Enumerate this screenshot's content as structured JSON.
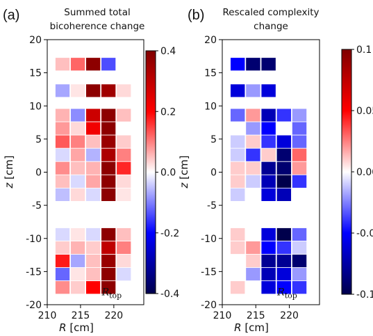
{
  "chart_data": [
    {
      "type": "heatmap",
      "panel_label": "(a)",
      "title_lines": [
        "Summed total",
        "bicoherence change"
      ],
      "xlabel": "R [cm]",
      "ylabel": "z [cm]",
      "xlim": [
        210,
        224.5
      ],
      "ylim": [
        -20,
        20
      ],
      "xticks": [
        210,
        215,
        220
      ],
      "yticks": [
        20,
        15,
        10,
        5,
        0,
        -5,
        -10,
        -15,
        -20
      ],
      "grid": false,
      "annotation": {
        "text": "R",
        "sub": "top",
        "x": 218.2,
        "y": -18.6
      },
      "colorbar": {
        "vmin": -0.4,
        "vmax": 0.4,
        "ticks": [
          0.4,
          0.2,
          0.0,
          -0.2,
          -0.4
        ],
        "tick_labels": [
          "0.4",
          "0.2",
          "0.0",
          "-0.2",
          "-0.4"
        ],
        "colormap": "seismic"
      },
      "cell_width": 2.2,
      "cell_height": 2.0,
      "rows": [
        {
          "z": 16.3,
          "cells": [
            {
              "R": 212.3,
              "v": 0.05
            },
            {
              "R": 214.6,
              "v": 0.12
            },
            {
              "R": 216.9,
              "v": 0.38
            },
            {
              "R": 219.2,
              "v": -0.14
            }
          ]
        },
        {
          "z": 12.3,
          "cells": [
            {
              "R": 212.3,
              "v": -0.07
            },
            {
              "R": 214.6,
              "v": 0.02
            },
            {
              "R": 216.9,
              "v": 0.38
            },
            {
              "R": 219.2,
              "v": 0.35
            },
            {
              "R": 221.5,
              "v": 0.03
            }
          ]
        },
        {
          "z": 8.6,
          "cells": [
            {
              "R": 212.3,
              "v": 0.06
            },
            {
              "R": 214.6,
              "v": -0.09
            },
            {
              "R": 216.9,
              "v": 0.28
            },
            {
              "R": 219.2,
              "v": 0.38
            },
            {
              "R": 221.5,
              "v": 0.05
            }
          ]
        },
        {
          "z": 6.6,
          "cells": [
            {
              "R": 212.3,
              "v": 0.08
            },
            {
              "R": 214.6,
              "v": 0.03
            },
            {
              "R": 216.9,
              "v": 0.22
            },
            {
              "R": 219.2,
              "v": 0.38
            }
          ]
        },
        {
          "z": 4.6,
          "cells": [
            {
              "R": 212.3,
              "v": 0.13
            },
            {
              "R": 214.6,
              "v": 0.1
            },
            {
              "R": 216.9,
              "v": 0.05
            },
            {
              "R": 219.2,
              "v": 0.36
            },
            {
              "R": 221.5,
              "v": 0.04
            }
          ]
        },
        {
          "z": 2.6,
          "cells": [
            {
              "R": 212.3,
              "v": -0.03
            },
            {
              "R": 214.6,
              "v": 0.07
            },
            {
              "R": 216.9,
              "v": -0.06
            },
            {
              "R": 219.2,
              "v": 0.33
            },
            {
              "R": 221.5,
              "v": 0.1
            }
          ]
        },
        {
          "z": 0.6,
          "cells": [
            {
              "R": 212.3,
              "v": 0.09
            },
            {
              "R": 214.6,
              "v": 0.05
            },
            {
              "R": 216.9,
              "v": 0.06
            },
            {
              "R": 219.2,
              "v": 0.38
            },
            {
              "R": 221.5,
              "v": 0.17
            }
          ]
        },
        {
          "z": -1.4,
          "cells": [
            {
              "R": 212.3,
              "v": 0.05
            },
            {
              "R": 214.6,
              "v": -0.03
            },
            {
              "R": 216.9,
              "v": 0.07
            },
            {
              "R": 219.2,
              "v": 0.38
            },
            {
              "R": 221.5,
              "v": 0.03
            }
          ]
        },
        {
          "z": -3.4,
          "cells": [
            {
              "R": 212.3,
              "v": -0.05
            },
            {
              "R": 214.6,
              "v": 0.03
            },
            {
              "R": 216.9,
              "v": -0.03
            },
            {
              "R": 219.2,
              "v": 0.38
            },
            {
              "R": 221.5,
              "v": 0.02
            }
          ]
        },
        {
          "z": -9.4,
          "cells": [
            {
              "R": 212.3,
              "v": -0.03
            },
            {
              "R": 214.6,
              "v": 0.02
            },
            {
              "R": 216.9,
              "v": -0.03
            },
            {
              "R": 219.2,
              "v": 0.38
            },
            {
              "R": 221.5,
              "v": 0.05
            }
          ]
        },
        {
          "z": -11.4,
          "cells": [
            {
              "R": 212.3,
              "v": 0.04
            },
            {
              "R": 214.6,
              "v": 0.06
            },
            {
              "R": 216.9,
              "v": 0.04
            },
            {
              "R": 219.2,
              "v": 0.3
            },
            {
              "R": 221.5,
              "v": 0.1
            }
          ]
        },
        {
          "z": -13.4,
          "cells": [
            {
              "R": 212.3,
              "v": 0.18
            },
            {
              "R": 214.6,
              "v": -0.07
            },
            {
              "R": 216.9,
              "v": 0.05
            },
            {
              "R": 219.2,
              "v": 0.36
            },
            {
              "R": 221.5,
              "v": 0.03
            }
          ]
        },
        {
          "z": -15.4,
          "cells": [
            {
              "R": 212.3,
              "v": -0.12
            },
            {
              "R": 214.6,
              "v": 0.02
            },
            {
              "R": 216.9,
              "v": 0.05
            },
            {
              "R": 219.2,
              "v": 0.38
            },
            {
              "R": 221.5,
              "v": -0.03
            }
          ]
        },
        {
          "z": -17.4,
          "cells": [
            {
              "R": 212.3,
              "v": 0.09
            },
            {
              "R": 214.6,
              "v": 0.04
            },
            {
              "R": 216.9,
              "v": 0.2
            },
            {
              "R": 219.2,
              "v": 0.38
            }
          ]
        }
      ]
    },
    {
      "type": "heatmap",
      "panel_label": "(b)",
      "title_lines": [
        "Rescaled complexity",
        "change"
      ],
      "xlabel": "R [cm]",
      "ylabel": "z [cm]",
      "xlim": [
        210,
        224.5
      ],
      "ylim": [
        -20,
        20
      ],
      "xticks": [
        210,
        215,
        220
      ],
      "yticks": [
        20,
        15,
        10,
        5,
        0,
        -5,
        -10,
        -15,
        -20
      ],
      "grid": false,
      "annotation": {
        "text": "R",
        "sub": "top",
        "x": 218.2,
        "y": -18.6
      },
      "colorbar": {
        "vmin": -0.1,
        "vmax": 0.1,
        "ticks": [
          0.1,
          0.05,
          0.0,
          -0.05,
          -0.1
        ],
        "tick_labels": [
          "0.1",
          "0.05",
          "0.00",
          "-0.05",
          "-0.10"
        ],
        "colormap": "seismic"
      },
      "cell_width": 2.2,
      "cell_height": 2.0,
      "rows": [
        {
          "z": 16.3,
          "cells": [
            {
              "R": 212.3,
              "v": -0.05
            },
            {
              "R": 214.6,
              "v": -0.09
            },
            {
              "R": 216.9,
              "v": -0.09
            },
            {
              "R": 219.2,
              "v": 0.0
            }
          ]
        },
        {
          "z": 12.3,
          "cells": [
            {
              "R": 212.3,
              "v": -0.06
            },
            {
              "R": 214.6,
              "v": -0.02
            },
            {
              "R": 216.9,
              "v": -0.06
            },
            {
              "R": 219.2,
              "v": 0.0
            },
            {
              "R": 221.5,
              "v": 0.0
            }
          ]
        },
        {
          "z": 8.6,
          "cells": [
            {
              "R": 212.3,
              "v": -0.03
            },
            {
              "R": 214.6,
              "v": 0.02
            },
            {
              "R": 216.9,
              "v": -0.07
            },
            {
              "R": 219.2,
              "v": -0.04
            },
            {
              "R": 221.5,
              "v": -0.02
            }
          ]
        },
        {
          "z": 6.6,
          "cells": [
            {
              "R": 212.3,
              "v": 0.0
            },
            {
              "R": 214.6,
              "v": -0.02
            },
            {
              "R": 216.9,
              "v": -0.05
            },
            {
              "R": 219.2,
              "v": 0.0
            },
            {
              "R": 221.5,
              "v": -0.03
            }
          ]
        },
        {
          "z": 4.6,
          "cells": [
            {
              "R": 212.3,
              "v": -0.01
            },
            {
              "R": 214.6,
              "v": 0.01
            },
            {
              "R": 216.9,
              "v": -0.04
            },
            {
              "R": 219.2,
              "v": -0.06
            },
            {
              "R": 221.5,
              "v": -0.03
            }
          ]
        },
        {
          "z": 2.6,
          "cells": [
            {
              "R": 212.3,
              "v": -0.01
            },
            {
              "R": 214.6,
              "v": -0.04
            },
            {
              "R": 216.9,
              "v": 0.01
            },
            {
              "R": 219.2,
              "v": -0.09
            },
            {
              "R": 221.5,
              "v": 0.03
            }
          ]
        },
        {
          "z": 0.6,
          "cells": [
            {
              "R": 212.3,
              "v": 0.01
            },
            {
              "R": 214.6,
              "v": 0.01
            },
            {
              "R": 216.9,
              "v": -0.08
            },
            {
              "R": 219.2,
              "v": -0.09
            },
            {
              "R": 221.5,
              "v": 0.02
            }
          ]
        },
        {
          "z": -1.4,
          "cells": [
            {
              "R": 212.3,
              "v": 0.01
            },
            {
              "R": 214.6,
              "v": -0.01
            },
            {
              "R": 216.9,
              "v": -0.07
            },
            {
              "R": 219.2,
              "v": -0.1
            },
            {
              "R": 221.5,
              "v": -0.04
            }
          ]
        },
        {
          "z": -3.4,
          "cells": [
            {
              "R": 212.3,
              "v": -0.01
            },
            {
              "R": 214.6,
              "v": 0.0
            },
            {
              "R": 216.9,
              "v": -0.06
            },
            {
              "R": 219.2,
              "v": -0.07
            },
            {
              "R": 221.5,
              "v": 0.0
            }
          ]
        },
        {
          "z": -9.4,
          "cells": [
            {
              "R": 212.3,
              "v": 0.01
            },
            {
              "R": 214.6,
              "v": 0.0
            },
            {
              "R": 216.9,
              "v": -0.06
            },
            {
              "R": 219.2,
              "v": -0.1
            },
            {
              "R": 221.5,
              "v": -0.03
            }
          ]
        },
        {
          "z": -11.4,
          "cells": [
            {
              "R": 212.3,
              "v": 0.01
            },
            {
              "R": 214.6,
              "v": 0.02
            },
            {
              "R": 216.9,
              "v": -0.05
            },
            {
              "R": 219.2,
              "v": -0.04
            },
            {
              "R": 221.5,
              "v": -0.01
            }
          ]
        },
        {
          "z": -13.4,
          "cells": [
            {
              "R": 212.3,
              "v": 0.0
            },
            {
              "R": 214.6,
              "v": 0.01
            },
            {
              "R": 216.9,
              "v": -0.08
            },
            {
              "R": 219.2,
              "v": -0.08
            },
            {
              "R": 221.5,
              "v": -0.09
            }
          ]
        },
        {
          "z": -15.4,
          "cells": [
            {
              "R": 212.3,
              "v": 0.0
            },
            {
              "R": 214.6,
              "v": -0.02
            },
            {
              "R": 216.9,
              "v": -0.07
            },
            {
              "R": 219.2,
              "v": -0.06
            },
            {
              "R": 221.5,
              "v": -0.02
            }
          ]
        },
        {
          "z": -17.4,
          "cells": [
            {
              "R": 212.3,
              "v": 0.01
            },
            {
              "R": 214.6,
              "v": 0.0
            },
            {
              "R": 216.9,
              "v": -0.06
            },
            {
              "R": 219.2,
              "v": -0.05
            },
            {
              "R": 221.5,
              "v": -0.04
            }
          ]
        }
      ]
    }
  ]
}
